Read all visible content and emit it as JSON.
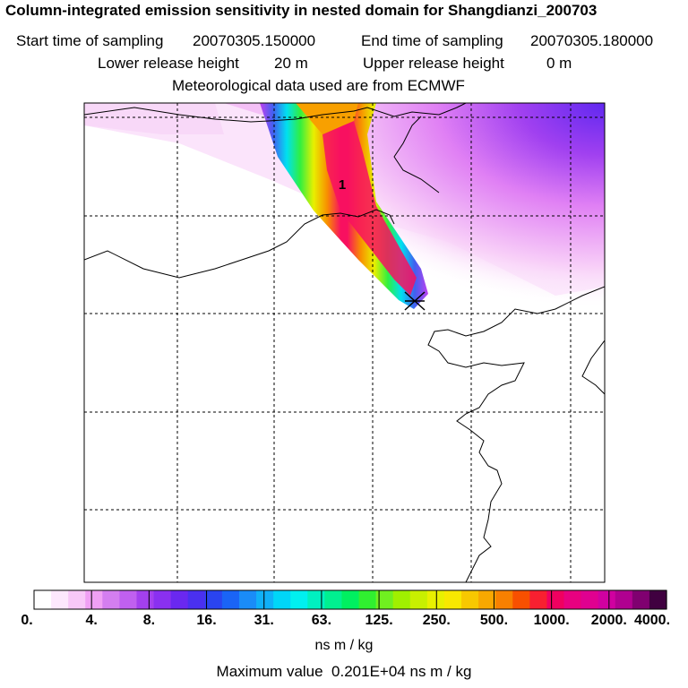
{
  "header": {
    "title": "Column-integrated emission sensitivity in nested domain for Shangdianzi_200703",
    "start_label": "Start time of sampling",
    "start_value": "20070305.150000",
    "end_label": "End time of sampling",
    "end_value": "20070305.180000",
    "lower_label": "Lower release height",
    "lower_value": "20 m",
    "upper_label": "Upper release height",
    "upper_value": "0 m",
    "met": "Meteorological data used are from ECMWF"
  },
  "map": {
    "plume_label": "1",
    "release_marker": "receptor-marker"
  },
  "colorbar": {
    "ticks": [
      "0.",
      "4.",
      "8.",
      "16.",
      "31.",
      "63.",
      "125.",
      "250.",
      "500.",
      "1000.",
      "2000.",
      "4000."
    ],
    "colors": [
      "#ffffff",
      "#fde8fd",
      "#f8c8f8",
      "#f0a0f4",
      "#d47ef0",
      "#c060f0",
      "#a340ee",
      "#8a30f0",
      "#6a28f0",
      "#4a30f0",
      "#2a44f0",
      "#1a64f6",
      "#1a8cf8",
      "#10b0f8",
      "#00d6f8",
      "#00f0f0",
      "#00f0c0",
      "#00f090",
      "#00f060",
      "#30f030",
      "#70f020",
      "#a0f000",
      "#c8f000",
      "#e8f000",
      "#f8e800",
      "#f8c800",
      "#f8a800",
      "#f88000",
      "#f85000",
      "#f82030",
      "#f00060",
      "#e80080",
      "#e00090",
      "#d000a0",
      "#b00090",
      "#800070",
      "#400040"
    ],
    "unit": "ns m / kg"
  },
  "footer": {
    "max_label": "Maximum value",
    "max_value": "0.201E+04 ns m / kg"
  }
}
